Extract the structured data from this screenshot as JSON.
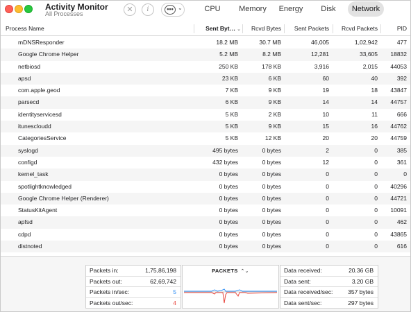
{
  "window": {
    "title": "Activity Monitor",
    "subtitle": "All Processes"
  },
  "toolbar": {
    "stop_icon": "xmark-circle-icon",
    "info_icon": "info-circle-icon",
    "more_icon": "ellipsis-circle-icon",
    "more_glyph": "•••",
    "chevron_glyph": "⌄",
    "tabs": [
      {
        "label": "CPU",
        "active": false
      },
      {
        "label": "Memory",
        "active": false
      },
      {
        "label": "Energy",
        "active": false
      },
      {
        "label": "Disk",
        "active": false
      },
      {
        "label": "Network",
        "active": true
      }
    ]
  },
  "table": {
    "columns": {
      "name": "Process Name",
      "sent": "Sent Byt…",
      "sort_glyph": "⌄",
      "rcvd": "Rcvd Bytes",
      "sent_packets": "Sent Packets",
      "rcvd_packets": "Rcvd Packets",
      "pid": "PID"
    },
    "rows": [
      {
        "name": "mDNSResponder",
        "sent": "18.2 MB",
        "rcvd": "30.7 MB",
        "spk": "46,005",
        "rpk": "1,02,942",
        "pid": "477"
      },
      {
        "name": "Google Chrome Helper",
        "sent": "5.2 MB",
        "rcvd": "8.2 MB",
        "spk": "12,281",
        "rpk": "33,605",
        "pid": "18832"
      },
      {
        "name": "netbiosd",
        "sent": "250 KB",
        "rcvd": "178 KB",
        "spk": "3,916",
        "rpk": "2,015",
        "pid": "44053"
      },
      {
        "name": "apsd",
        "sent": "23 KB",
        "rcvd": "6 KB",
        "spk": "60",
        "rpk": "40",
        "pid": "392"
      },
      {
        "name": "com.apple.geod",
        "sent": "7 KB",
        "rcvd": "9 KB",
        "spk": "19",
        "rpk": "18",
        "pid": "43847"
      },
      {
        "name": "parsecd",
        "sent": "6 KB",
        "rcvd": "9 KB",
        "spk": "14",
        "rpk": "14",
        "pid": "44757"
      },
      {
        "name": "identityservicesd",
        "sent": "5 KB",
        "rcvd": "2 KB",
        "spk": "10",
        "rpk": "11",
        "pid": "666"
      },
      {
        "name": "itunescloudd",
        "sent": "5 KB",
        "rcvd": "9 KB",
        "spk": "15",
        "rpk": "16",
        "pid": "44762"
      },
      {
        "name": "CategoriesService",
        "sent": "5 KB",
        "rcvd": "12 KB",
        "spk": "20",
        "rpk": "20",
        "pid": "44759"
      },
      {
        "name": "syslogd",
        "sent": "495 bytes",
        "rcvd": "0 bytes",
        "spk": "2",
        "rpk": "0",
        "pid": "385"
      },
      {
        "name": "configd",
        "sent": "432 bytes",
        "rcvd": "0 bytes",
        "spk": "12",
        "rpk": "0",
        "pid": "361"
      },
      {
        "name": "kernel_task",
        "sent": "0 bytes",
        "rcvd": "0 bytes",
        "spk": "0",
        "rpk": "0",
        "pid": "0"
      },
      {
        "name": "spotlightknowledged",
        "sent": "0 bytes",
        "rcvd": "0 bytes",
        "spk": "0",
        "rpk": "0",
        "pid": "40296"
      },
      {
        "name": "Google Chrome Helper (Renderer)",
        "sent": "0 bytes",
        "rcvd": "0 bytes",
        "spk": "0",
        "rpk": "0",
        "pid": "44721"
      },
      {
        "name": "StatusKitAgent",
        "sent": "0 bytes",
        "rcvd": "0 bytes",
        "spk": "0",
        "rpk": "0",
        "pid": "10091"
      },
      {
        "name": "apfsd",
        "sent": "0 bytes",
        "rcvd": "0 bytes",
        "spk": "0",
        "rpk": "0",
        "pid": "462"
      },
      {
        "name": "cdpd",
        "sent": "0 bytes",
        "rcvd": "0 bytes",
        "spk": "0",
        "rpk": "0",
        "pid": "43865"
      },
      {
        "name": "distnoted",
        "sent": "0 bytes",
        "rcvd": "0 bytes",
        "spk": "0",
        "rpk": "0",
        "pid": "616"
      }
    ]
  },
  "footer": {
    "left": [
      {
        "label": "Packets in:",
        "value": "1,75,86,198",
        "color": ""
      },
      {
        "label": "Packets out:",
        "value": "62,69,742",
        "color": ""
      },
      {
        "label": "Packets in/sec:",
        "value": "5",
        "color": "blue"
      },
      {
        "label": "Packets out/sec:",
        "value": "4",
        "color": "red"
      }
    ],
    "graph": {
      "title": "PACKETS",
      "chevron_glyph": "⌃⌄",
      "in_color": "#2d8df5",
      "out_color": "#e8453c"
    },
    "right": [
      {
        "label": "Data received:",
        "value": "20.36 GB"
      },
      {
        "label": "Data sent:",
        "value": "3.20 GB"
      },
      {
        "label": "Data received/sec:",
        "value": "357 bytes"
      },
      {
        "label": "Data sent/sec:",
        "value": "297 bytes"
      }
    ]
  }
}
